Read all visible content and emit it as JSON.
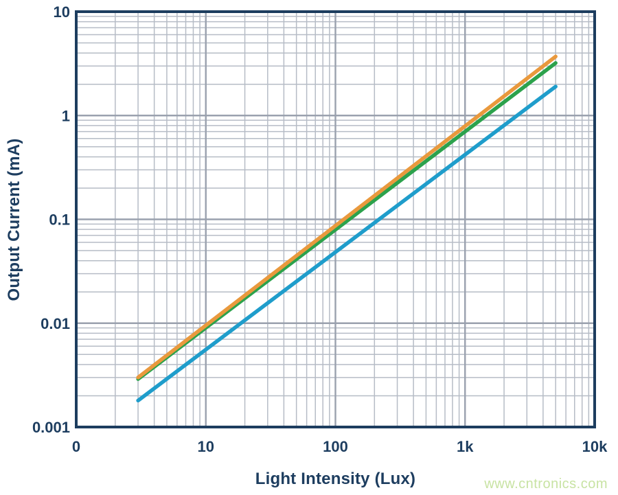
{
  "chart_data": {
    "type": "line",
    "title": "",
    "xlabel": "Light Intensity (Lux)",
    "ylabel": "Output Current (mA)",
    "x_scale": "log",
    "y_scale": "log",
    "xlim": [
      1,
      10000
    ],
    "ylim": [
      0.001,
      10
    ],
    "grid": true,
    "legend": "none",
    "x_ticks": [
      {
        "value": 1,
        "label": "0"
      },
      {
        "value": 10,
        "label": "10"
      },
      {
        "value": 100,
        "label": "100"
      },
      {
        "value": 1000,
        "label": "1k"
      },
      {
        "value": 10000,
        "label": "10k"
      }
    ],
    "y_ticks": [
      {
        "value": 10,
        "label": "10"
      },
      {
        "value": 1,
        "label": "1"
      },
      {
        "value": 0.1,
        "label": "0.1"
      },
      {
        "value": 0.01,
        "label": "0.01"
      },
      {
        "value": 0.001,
        "label": "0.001"
      }
    ],
    "series": [
      {
        "name": "blue-curve",
        "color": "#1F9DCB",
        "points": [
          [
            3,
            0.0018
          ],
          [
            5000,
            1.9
          ]
        ]
      },
      {
        "name": "green-curve",
        "color": "#2CA24C",
        "points": [
          [
            3,
            0.0029
          ],
          [
            5000,
            3.2
          ]
        ]
      },
      {
        "name": "orange-curve",
        "color": "#E9993D",
        "points": [
          [
            3,
            0.003
          ],
          [
            5000,
            3.7
          ]
        ]
      }
    ],
    "colors": {
      "axis": "#1D3D5F",
      "text": "#1D3D5F",
      "grid_minor": "#B6BCC6",
      "grid_major": "#9AA1AE",
      "background": "#FFFFFF"
    }
  },
  "watermark": {
    "text": "www.cntronics.com",
    "color": "#C8E3A3"
  }
}
